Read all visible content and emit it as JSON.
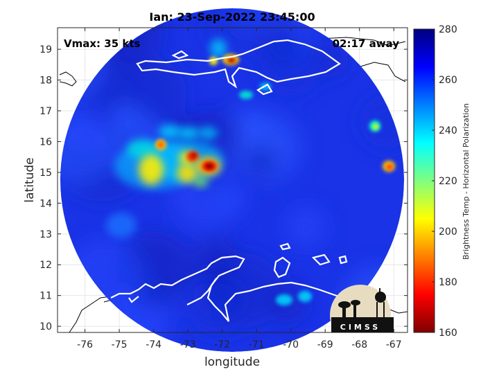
{
  "chart_data": {
    "type": "heatmap",
    "title": "Ian: 23-Sep-2022 23:45:00",
    "xlabel": "longitude",
    "ylabel": "latitude",
    "xlim": [
      -76.8,
      -66.6
    ],
    "ylim": [
      9.8,
      19.7
    ],
    "x_ticks": [
      -76,
      -75,
      -74,
      -73,
      -72,
      -71,
      -70,
      -69,
      -68,
      -67
    ],
    "y_ticks": [
      10,
      11,
      12,
      13,
      14,
      15,
      16,
      17,
      18,
      19
    ],
    "grid": true,
    "annotations": {
      "vmax": "Vmax: 35 kts",
      "time_away": "02:17 away"
    },
    "colorbar": {
      "label": "Brightness Temp - Horizontal Polarization",
      "range": [
        160,
        280
      ],
      "ticks": [
        160,
        180,
        200,
        220,
        240,
        260,
        280
      ],
      "colormap": [
        "#7f0000",
        "#ff0000",
        "#ffff00",
        "#00ffff",
        "#0000ff",
        "#00007f"
      ]
    },
    "background_value": 262,
    "swath_center": [
      -71.7,
      14.75
    ],
    "swath_radius_deg": 4.85,
    "features": [
      {
        "name": "eye-cold-core",
        "lon": -72.3,
        "lat": 15.3,
        "min_value": 165
      },
      {
        "name": "north-cold-spot",
        "lon": -71.5,
        "lat": 18.65,
        "min_value": 175
      },
      {
        "name": "west-band",
        "lon": -74.0,
        "lat": 15.0,
        "min_value": 200
      },
      {
        "name": "central-band",
        "lon": -72.8,
        "lat": 15.5,
        "min_value": 190
      }
    ]
  },
  "logo": {
    "text": "CIMSS"
  },
  "colors": {
    "coast": "#ffffff",
    "coast_outside": "#000000",
    "axis": "#262626"
  }
}
